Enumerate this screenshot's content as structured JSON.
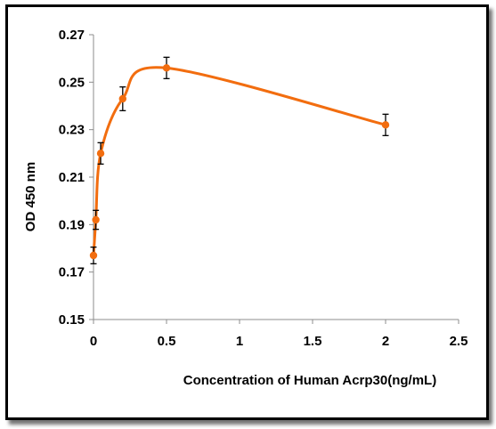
{
  "chart_data": {
    "type": "scatter",
    "title": "",
    "xlabel": "Concentration of Human Acrp30(ng/mL)",
    "ylabel": "OD 450 nm",
    "xlim": [
      0,
      2.5
    ],
    "ylim": [
      0.15,
      0.27
    ],
    "x_ticks": [
      "0",
      "0.5",
      "1",
      "1.5",
      "2",
      "2.5"
    ],
    "y_ticks": [
      "0.15",
      "0.17",
      "0.19",
      "0.21",
      "0.23",
      "0.25",
      "0.27"
    ],
    "grid": false,
    "legend": "none",
    "smooth_line": true,
    "series": [
      {
        "color": "#F26D0F",
        "x": [
          0,
          0.016,
          0.049,
          0.2,
          0.5,
          2.0
        ],
        "y": [
          0.177,
          0.192,
          0.22,
          0.243,
          0.256,
          0.232
        ],
        "error": [
          0.0035,
          0.004,
          0.0045,
          0.005,
          0.0045,
          0.0045
        ]
      }
    ]
  }
}
